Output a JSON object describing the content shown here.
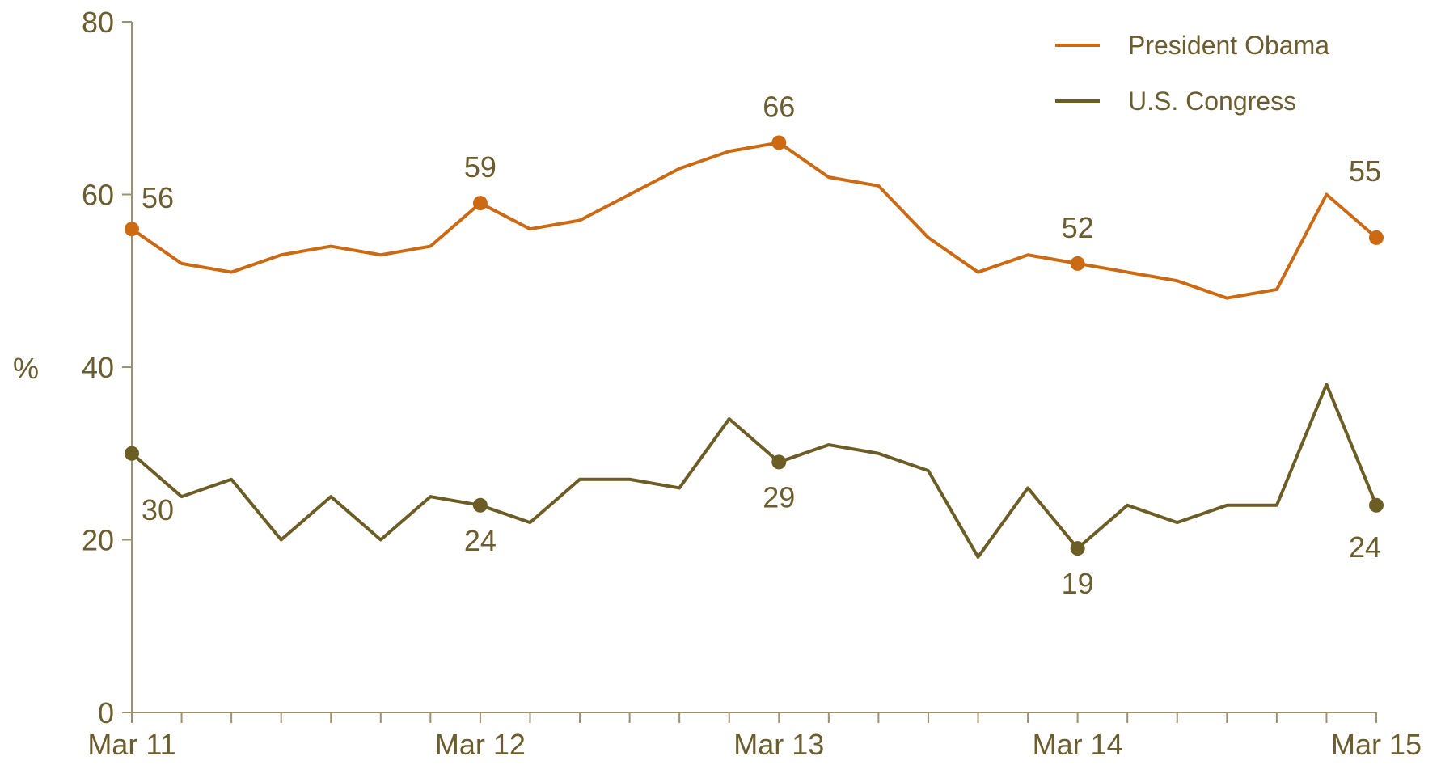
{
  "chart_data": {
    "type": "line",
    "ylabel": "%",
    "ylim": [
      0,
      80
    ],
    "yticks": [
      "0",
      "20",
      "40",
      "60",
      "80"
    ],
    "xticks": [
      {
        "index": 0,
        "label": "Mar 11"
      },
      {
        "index": 7,
        "label": "Mar 12"
      },
      {
        "index": 13,
        "label": "Mar 13"
      },
      {
        "index": 19,
        "label": "Mar 14"
      },
      {
        "index": 25,
        "label": "Mar 15"
      }
    ],
    "x_count": 26,
    "grid": false,
    "legend_position": "top-right",
    "series": [
      {
        "name": "President Obama",
        "color": "#cc6a14",
        "values": [
          56,
          52,
          51,
          53,
          54,
          53,
          54,
          59,
          56,
          57,
          60,
          63,
          65,
          66,
          62,
          61,
          55,
          51,
          53,
          52,
          51,
          50,
          48,
          49,
          60,
          55
        ],
        "labeled_points": [
          {
            "index": 0,
            "label": "56",
            "position": "above-right"
          },
          {
            "index": 7,
            "label": "59",
            "position": "above"
          },
          {
            "index": 13,
            "label": "66",
            "position": "above"
          },
          {
            "index": 19,
            "label": "52",
            "position": "above"
          },
          {
            "index": 25,
            "label": "55",
            "position": "above-left"
          }
        ]
      },
      {
        "name": "U.S. Congress",
        "color": "#6b5d24",
        "values": [
          30,
          25,
          27,
          20,
          25,
          20,
          25,
          24,
          22,
          27,
          27,
          26,
          34,
          29,
          31,
          30,
          28,
          18,
          26,
          19,
          24,
          22,
          24,
          24,
          38,
          24
        ],
        "labeled_points": [
          {
            "index": 0,
            "label": "30",
            "position": "below-right"
          },
          {
            "index": 7,
            "label": "24",
            "position": "below"
          },
          {
            "index": 13,
            "label": "29",
            "position": "below"
          },
          {
            "index": 19,
            "label": "19",
            "position": "below"
          },
          {
            "index": 25,
            "label": "24",
            "position": "below-left"
          }
        ]
      }
    ]
  }
}
